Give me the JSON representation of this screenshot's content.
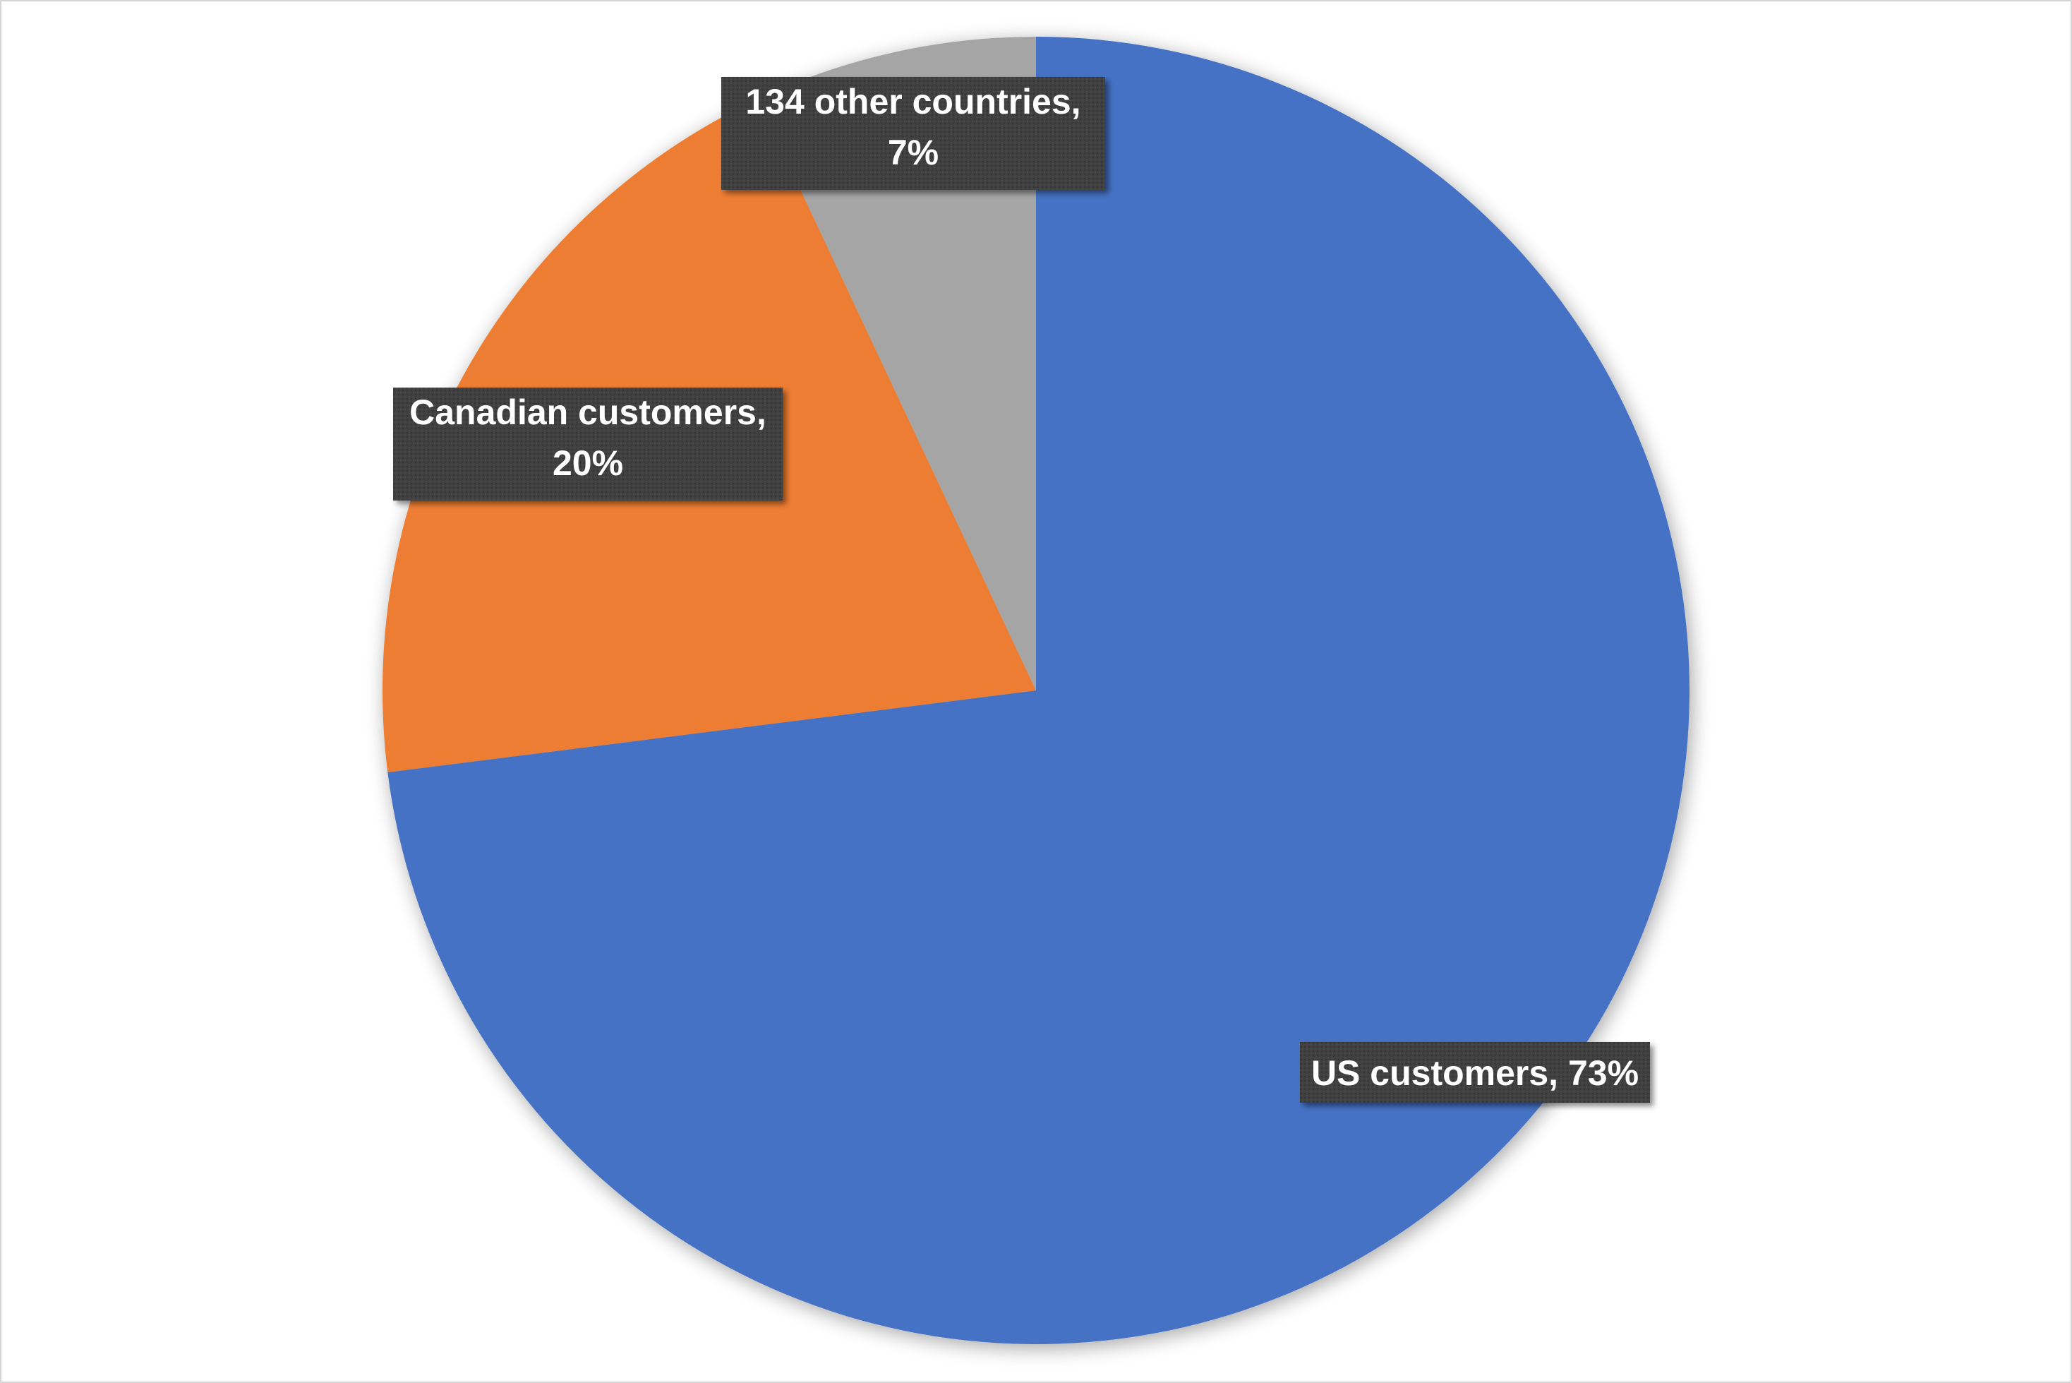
{
  "chart_data": {
    "type": "pie",
    "title": "",
    "start_angle_deg": 0,
    "direction": "clockwise",
    "slices": [
      {
        "name": "US customers",
        "value": 73,
        "value_label": "73%",
        "color": "#4472C4"
      },
      {
        "name": "Canadian customers",
        "value": 20,
        "value_label": "20%",
        "color": "#ED7D31"
      },
      {
        "name": "134 other countries",
        "value": 7,
        "value_label": "7%",
        "color": "#A5A5A5"
      }
    ],
    "data_labels": {
      "show_category": true,
      "show_percent": true,
      "separator": ", ",
      "box_color": "#404040",
      "text_color": "#FFFFFF"
    },
    "legend": "none"
  }
}
